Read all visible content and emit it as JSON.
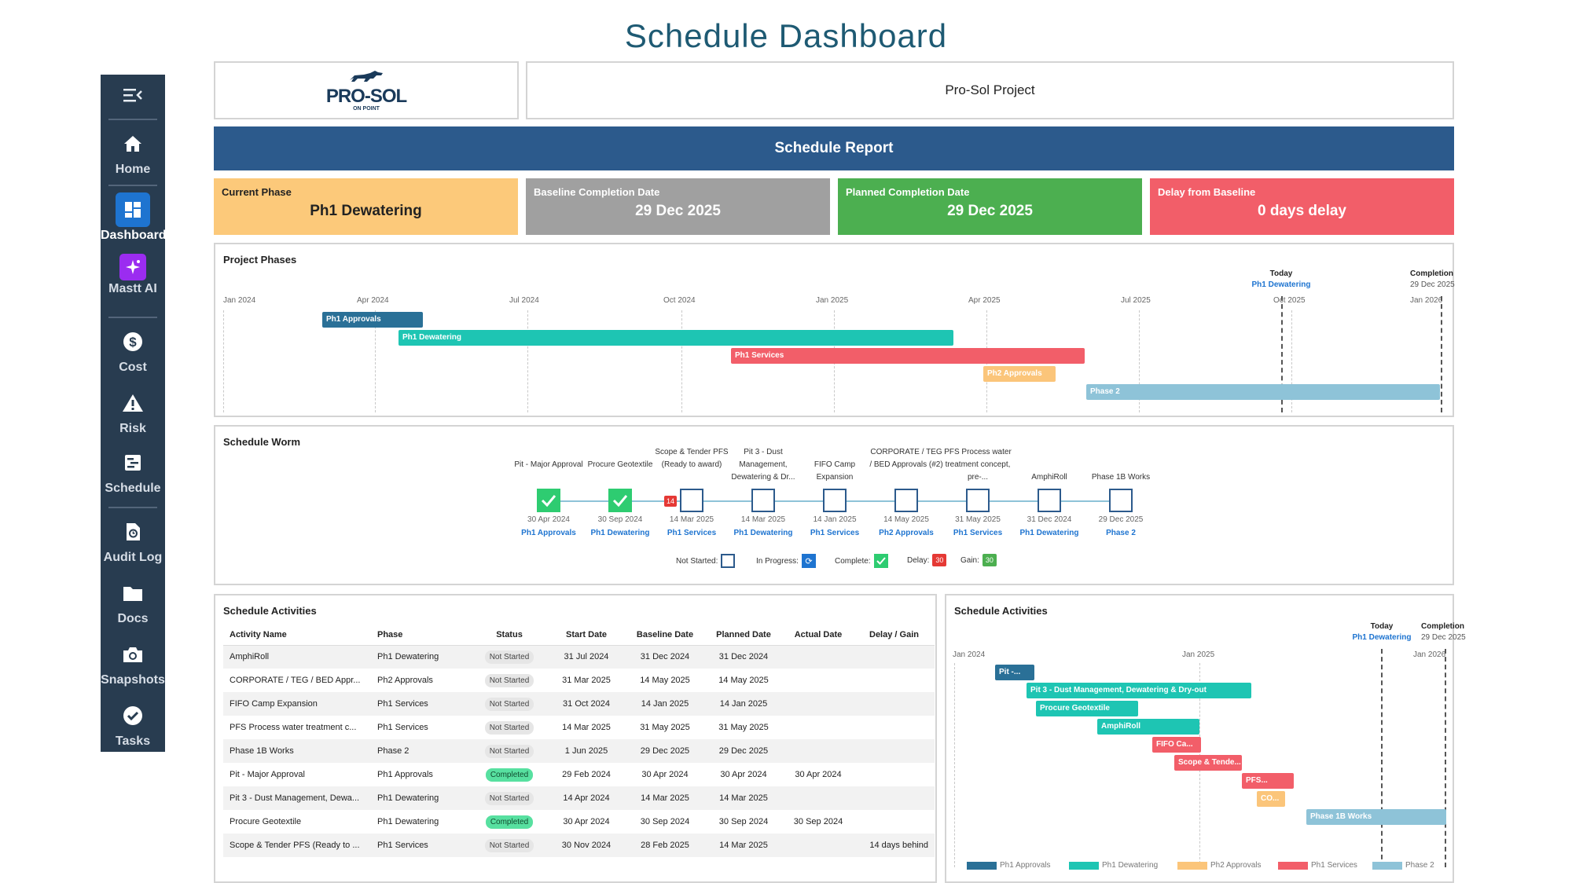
{
  "page_title": "Schedule Dashboard",
  "sidebar": {
    "items": [
      {
        "label": "Home",
        "icon": "home-icon"
      },
      {
        "label": "Dashboard",
        "icon": "dashboard-icon",
        "active": true
      },
      {
        "label": "Mastt AI",
        "icon": "sparkle-icon"
      },
      {
        "label": "Cost",
        "icon": "dollar-icon"
      },
      {
        "label": "Risk",
        "icon": "warning-icon"
      },
      {
        "label": "Schedule",
        "icon": "schedule-icon"
      },
      {
        "label": "Audit Log",
        "icon": "audit-log-icon"
      },
      {
        "label": "Docs",
        "icon": "folder-icon"
      },
      {
        "label": "Snapshots",
        "icon": "camera-icon"
      },
      {
        "label": "Tasks",
        "icon": "check-circle-icon"
      }
    ]
  },
  "header": {
    "logo_text": "PRO-SOL",
    "logo_sub": "ON POINT",
    "project_name": "Pro-Sol Project",
    "report_title": "Schedule Report"
  },
  "kpis": {
    "current_phase_label": "Current Phase",
    "current_phase_value": "Ph1 Dewatering",
    "baseline_label": "Baseline Completion Date",
    "baseline_value": "29 Dec 2025",
    "planned_label": "Planned Completion Date",
    "planned_value": "29 Dec 2025",
    "delay_label": "Delay from Baseline",
    "delay_value": "0 days delay"
  },
  "colors": {
    "ph1_approvals": "#2a7097",
    "ph1_dewatering": "#1ec5b3",
    "ph1_services": "#f25e69",
    "ph2_approvals": "#fbc57a",
    "phase2": "#8ec3d8"
  },
  "project_phases": {
    "title": "Project Phases",
    "ticks": [
      "Jan 2024",
      "Apr 2024",
      "Jul 2024",
      "Oct 2024",
      "Jan 2025",
      "Apr 2025",
      "Jul 2025",
      "Oct 2025",
      "Jan 2026"
    ],
    "today_label": "Today",
    "today_phase": "Ph1 Dewatering",
    "completion_label": "Completion",
    "completion_date": "29 Dec 2025",
    "bars": [
      {
        "label": "Ph1 Approvals"
      },
      {
        "label": "Ph1 Dewatering"
      },
      {
        "label": "Ph1 Services"
      },
      {
        "label": "Ph2 Approvals"
      },
      {
        "label": "Phase 2"
      }
    ]
  },
  "worm": {
    "title": "Schedule Worm",
    "milestones": [
      {
        "name": "Pit - Major Approval",
        "date": "30 Apr 2024",
        "phase": "Ph1 Approvals",
        "status": "complete"
      },
      {
        "name": "Procure Geotextile",
        "date": "30 Sep 2024",
        "phase": "Ph1 Dewatering",
        "status": "complete"
      },
      {
        "name": "Scope & Tender PFS (Ready to award)",
        "date": "14 Mar 2025",
        "phase": "Ph1 Services",
        "status": "not-started",
        "delay": "14"
      },
      {
        "name": "Pit 3 - Dust Management, Dewatering & Dr...",
        "date": "14 Mar 2025",
        "phase": "Ph1 Dewatering",
        "status": "not-started"
      },
      {
        "name": "FIFO Camp Expansion",
        "date": "14 Jan 2025",
        "phase": "Ph1 Services",
        "status": "not-started"
      },
      {
        "name": "CORPORATE / TEG / BED Approvals (#2)",
        "date": "14 May 2025",
        "phase": "Ph2 Approvals",
        "status": "not-started"
      },
      {
        "name": "PFS Process water treatment concept, pre-...",
        "date": "31 May 2025",
        "phase": "Ph1 Services",
        "status": "not-started"
      },
      {
        "name": "AmphiRoll",
        "date": "31 Dec 2024",
        "phase": "Ph1 Dewatering",
        "status": "not-started"
      },
      {
        "name": "Phase 1B Works",
        "date": "29 Dec 2025",
        "phase": "Phase 2",
        "status": "not-started"
      }
    ],
    "legend": {
      "not_started": "Not Started:",
      "in_progress": "In Progress:",
      "complete": "Complete:",
      "delay": "Delay:",
      "delay_num": "30",
      "gain": "Gain:",
      "gain_num": "30"
    }
  },
  "activities": {
    "title": "Schedule Activities",
    "columns": [
      "Activity Name",
      "Phase",
      "Status",
      "Start Date",
      "Baseline Date",
      "Planned Date",
      "Actual Date",
      "Delay / Gain"
    ],
    "rows": [
      [
        "AmphiRoll",
        "Ph1 Dewatering",
        "Not Started",
        "31 Jul 2024",
        "31 Dec 2024",
        "31 Dec 2024",
        "",
        ""
      ],
      [
        "CORPORATE / TEG / BED Appr...",
        "Ph2 Approvals",
        "Not Started",
        "31 Mar 2025",
        "14 May 2025",
        "14 May 2025",
        "",
        ""
      ],
      [
        "FIFO Camp Expansion",
        "Ph1 Services",
        "Not Started",
        "31 Oct 2024",
        "14 Jan 2025",
        "14 Jan 2025",
        "",
        ""
      ],
      [
        "PFS Process water treatment c...",
        "Ph1 Services",
        "Not Started",
        "14 Mar 2025",
        "31 May 2025",
        "31 May 2025",
        "",
        ""
      ],
      [
        "Phase 1B Works",
        "Phase 2",
        "Not Started",
        "1 Jun 2025",
        "29 Dec 2025",
        "29 Dec 2025",
        "",
        ""
      ],
      [
        "Pit - Major Approval",
        "Ph1 Approvals",
        "Completed",
        "29 Feb 2024",
        "30 Apr 2024",
        "30 Apr 2024",
        "30 Apr 2024",
        ""
      ],
      [
        "Pit 3 - Dust Management, Dewa...",
        "Ph1 Dewatering",
        "Not Started",
        "14 Apr 2024",
        "14 Mar 2025",
        "14 Mar 2025",
        "",
        ""
      ],
      [
        "Procure Geotextile",
        "Ph1 Dewatering",
        "Completed",
        "30 Apr 2024",
        "30 Sep 2024",
        "30 Sep 2024",
        "30 Sep 2024",
        ""
      ],
      [
        "Scope & Tender PFS (Ready to ...",
        "Ph1 Services",
        "Not Started",
        "30 Nov 2024",
        "28 Feb 2025",
        "14 Mar 2025",
        "",
        "14 days behind"
      ]
    ]
  },
  "activity_gantt": {
    "title": "Schedule Activities",
    "ticks": [
      "Jan 2024",
      "Jan 2025",
      "Jan 2026"
    ],
    "today_label": "Today",
    "today_phase": "Ph1 Dewatering",
    "completion_label": "Completion",
    "completion_date": "29 Dec 2025",
    "bars": [
      {
        "label": "Pit -..."
      },
      {
        "label": "Pit 3 - Dust Management, Dewatering & Dry-out"
      },
      {
        "label": "Procure Geotextile"
      },
      {
        "label": "AmphiRoll"
      },
      {
        "label": "FIFO Ca..."
      },
      {
        "label": "Scope & Tende..."
      },
      {
        "label": "PFS..."
      },
      {
        "label": "CO..."
      },
      {
        "label": "Phase 1B Works"
      }
    ],
    "legend": [
      "Ph1 Approvals",
      "Ph1 Dewatering",
      "Ph2 Approvals",
      "Ph1 Services",
      "Phase 2"
    ]
  }
}
